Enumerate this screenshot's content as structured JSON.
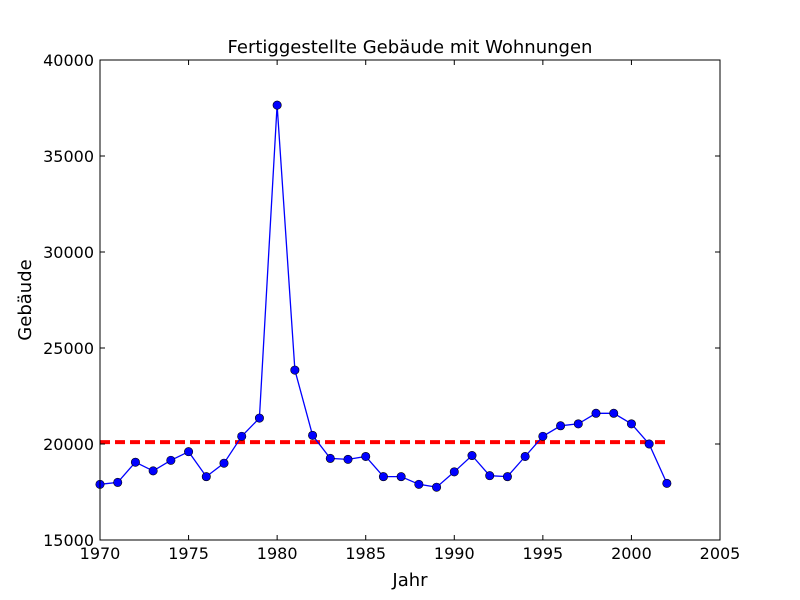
{
  "chart_data": {
    "type": "line",
    "title": "Fertiggestellte Gebäude mit Wohnungen",
    "xlabel": "Jahr",
    "ylabel": "Gebäude",
    "xlim": [
      1970,
      2005
    ],
    "ylim": [
      15000,
      40000
    ],
    "xticks": [
      "1970",
      "1975",
      "1980",
      "1985",
      "1990",
      "1995",
      "2000",
      "2005"
    ],
    "yticks": [
      "15000",
      "20000",
      "25000",
      "30000",
      "35000",
      "40000"
    ],
    "grid": false,
    "series": [
      {
        "color": "#0000ff",
        "marker": "circle",
        "x": [
          1970,
          1971,
          1972,
          1973,
          1974,
          1975,
          1976,
          1977,
          1978,
          1979,
          1980,
          1981,
          1982,
          1983,
          1984,
          1985,
          1986,
          1987,
          1988,
          1989,
          1990,
          1991,
          1992,
          1993,
          1994,
          1995,
          1996,
          1997,
          1998,
          1999,
          2000,
          2001,
          2002
        ],
        "values": [
          17900,
          18000,
          19050,
          18600,
          19150,
          19600,
          18300,
          19000,
          20400,
          21350,
          37650,
          23850,
          20450,
          19250,
          19200,
          19350,
          18300,
          18300,
          17900,
          17750,
          18550,
          19400,
          18350,
          18300,
          19350,
          20400,
          20950,
          21050,
          21600,
          21600,
          21050,
          20000,
          17950
        ]
      }
    ],
    "reference_line": {
      "value": 20100,
      "x_range": [
        1970,
        2002
      ],
      "color": "#ff0000",
      "style": "dashed"
    }
  }
}
